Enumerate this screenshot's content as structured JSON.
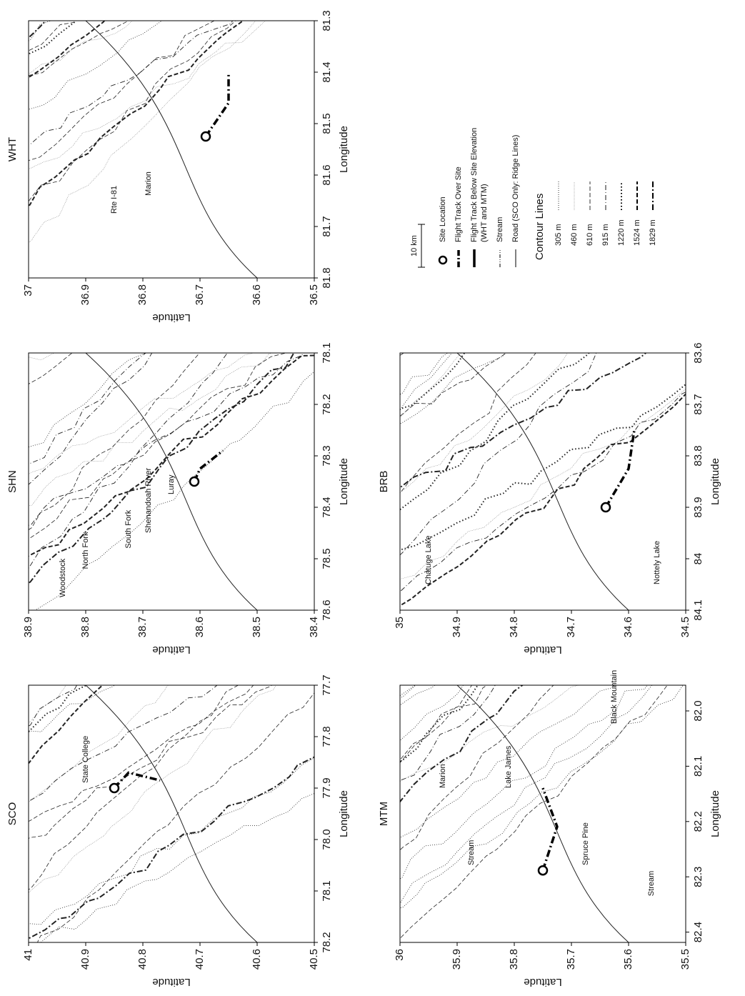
{
  "panels": [
    {
      "title": "SCO",
      "lat_label": "Latitude",
      "lon_label": "Longitude",
      "lat_ticks": [
        "41",
        "40.9",
        "40.8",
        "40.7",
        "40.6",
        "40.5"
      ],
      "lon_ticks": [
        "78.2",
        "78.1",
        "78.0",
        "77.9",
        "77.8",
        "77.7"
      ],
      "places": [
        "State College"
      ]
    },
    {
      "title": "SHN",
      "lat_label": "Latitude",
      "lon_label": "Longitude",
      "lat_ticks": [
        "38.9",
        "38.8",
        "38.7",
        "38.6",
        "38.5",
        "38.4"
      ],
      "lon_ticks": [
        "78.6",
        "78.5",
        "78.4",
        "78.3",
        "78.2",
        "78.1"
      ],
      "places": [
        "Woodstock",
        "North Fork",
        "South Fork",
        "Shenandoah River",
        "Luray"
      ]
    },
    {
      "title": "WHT",
      "lat_label": "Latitude",
      "lon_label": "Longitude",
      "lat_ticks": [
        "37",
        "36.9",
        "36.8",
        "36.7",
        "36.6",
        "36.5"
      ],
      "lon_ticks": [
        "81.8",
        "81.7",
        "81.6",
        "81.5",
        "81.4",
        "81.3"
      ],
      "places": [
        "Rte I-81",
        "Marion"
      ]
    },
    {
      "title": "MTM",
      "lat_label": "Latitude",
      "lon_label": "Longitude",
      "lat_ticks": [
        "36",
        "35.9",
        "35.8",
        "35.7",
        "35.6",
        "35.5"
      ],
      "lon_ticks": [
        "82.4",
        "82.3",
        "82.2",
        "82.1",
        "82.0"
      ],
      "places": [
        "Stream",
        "Spruce Pine",
        "Stream",
        "Lake James",
        "Marion",
        "Black Mountain"
      ]
    },
    {
      "title": "BRB",
      "lat_label": "Latitude",
      "lon_label": "Longitude",
      "lat_ticks": [
        "35",
        "34.9",
        "34.8",
        "34.7",
        "34.6",
        "34.5"
      ],
      "lon_ticks": [
        "84.1",
        "84",
        "83.9",
        "83.8",
        "83.7",
        "83.6"
      ],
      "places": [
        "Chatuge Lake",
        "Nottely Lake"
      ]
    }
  ],
  "legend": {
    "scale": "10 km",
    "items": [
      [
        "Site Location"
      ],
      [
        "Flight Track Over Site"
      ],
      [
        "Flight Track Below Site Elevation",
        "(WHT and MTM)"
      ],
      [
        "Stream"
      ],
      [
        "Road (SCO Only: Ridge Lines)"
      ]
    ],
    "contour_title": "Contour Lines",
    "contours": [
      "305 m",
      "460 m",
      "610 m",
      "915 m",
      "1220 m",
      "1524 m",
      "1829 m"
    ]
  }
}
